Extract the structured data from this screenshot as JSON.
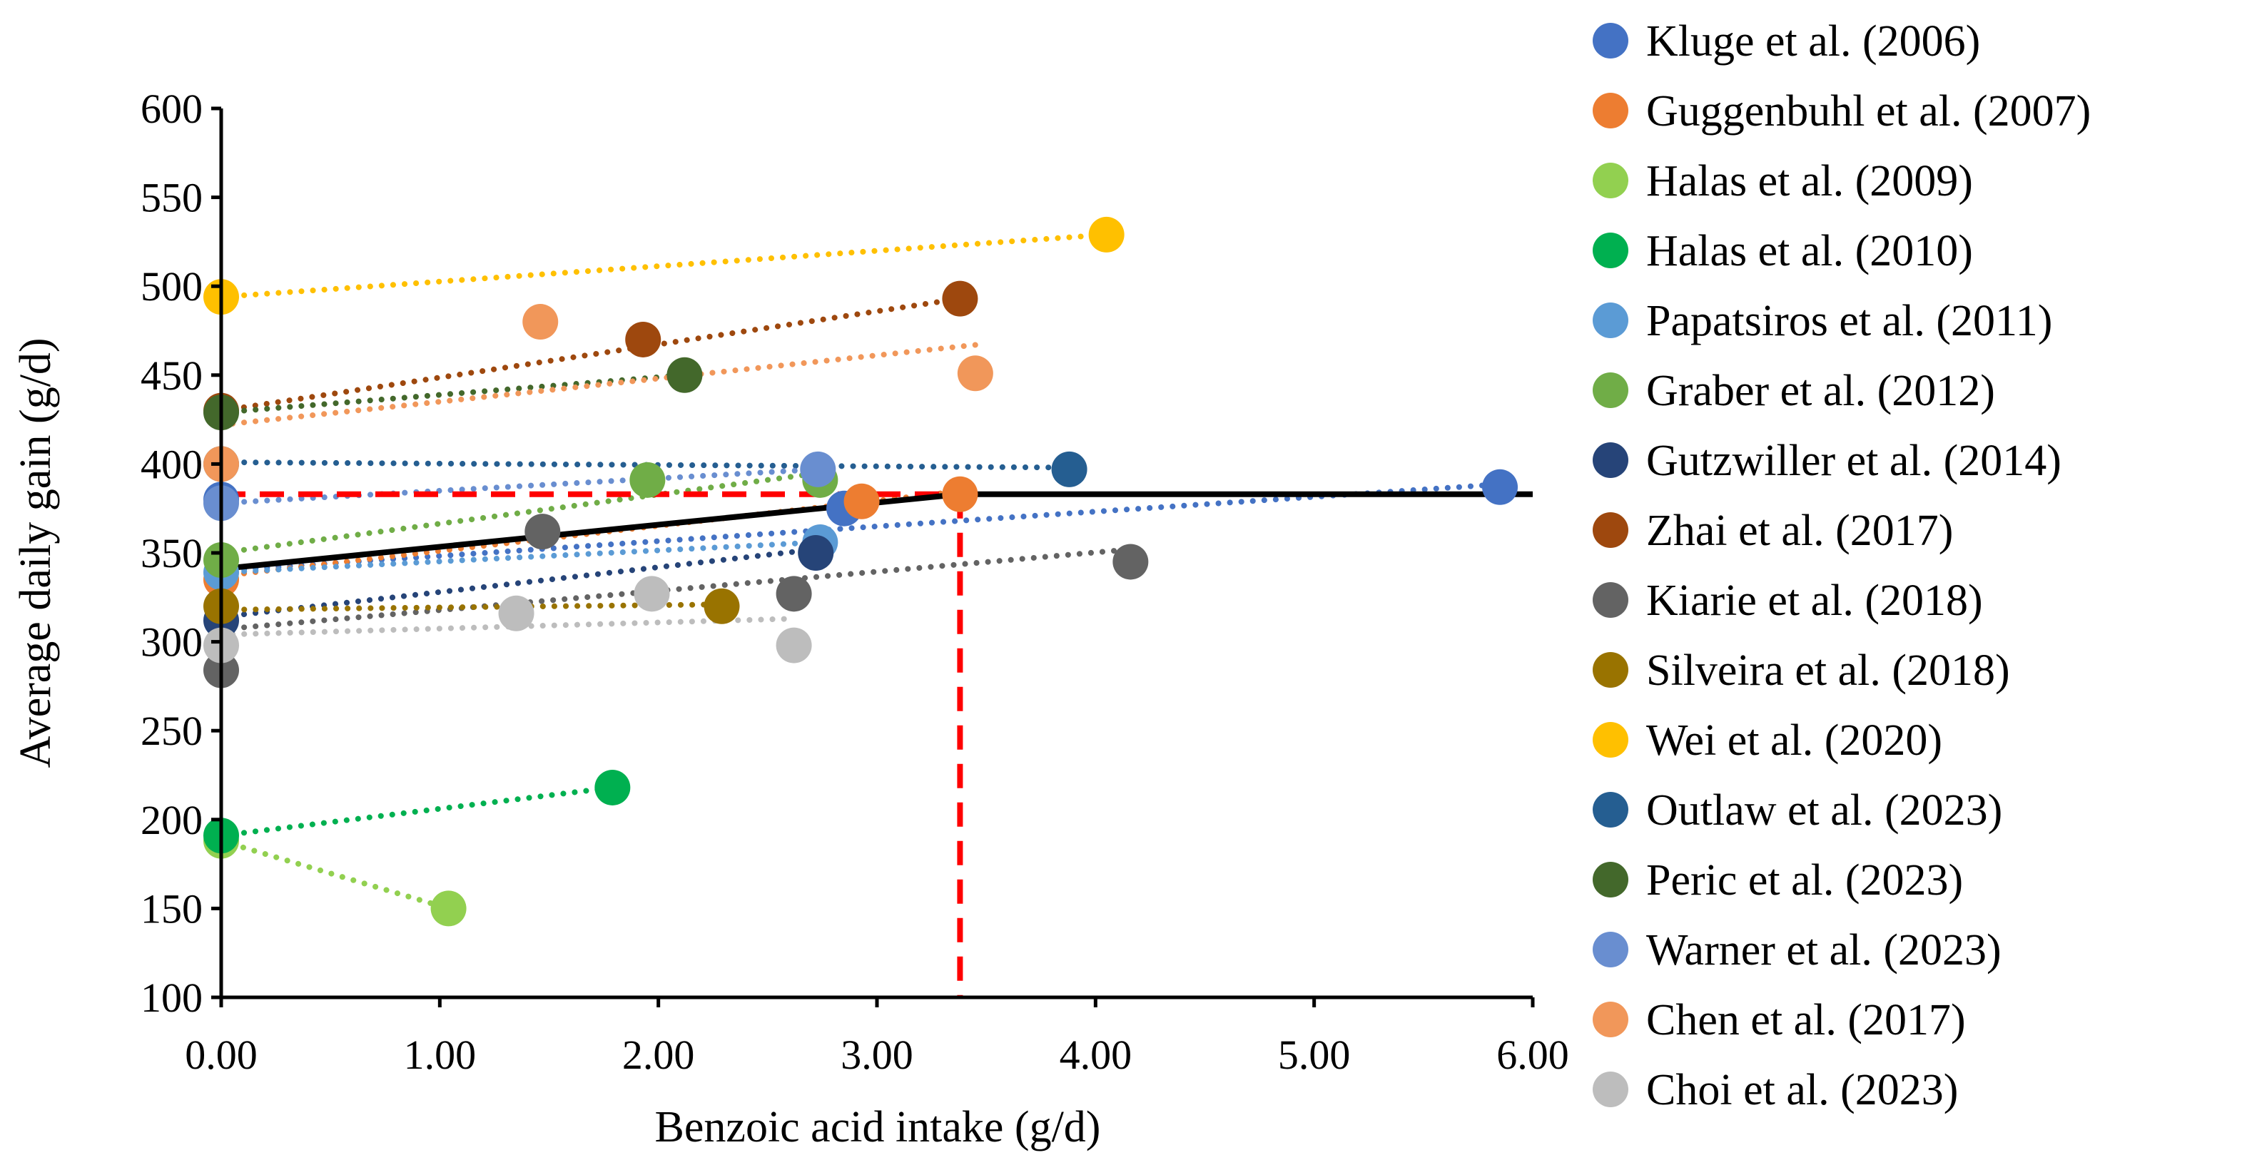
{
  "chart_data": {
    "type": "scatter",
    "title": "",
    "xlabel": "Benzoic acid intake (g/d)",
    "ylabel": "Average daily gain (g/d)",
    "xlim": [
      0,
      6
    ],
    "ylim": [
      100,
      600
    ],
    "x_ticks": [
      "0.00",
      "1.00",
      "2.00",
      "3.00",
      "4.00",
      "5.00",
      "6.00"
    ],
    "y_ticks": [
      "100",
      "150",
      "200",
      "250",
      "300",
      "350",
      "400",
      "450",
      "500",
      "550",
      "600"
    ],
    "x_tick_values": [
      0,
      1,
      2,
      3,
      4,
      5,
      6
    ],
    "y_tick_values": [
      100,
      150,
      200,
      250,
      300,
      350,
      400,
      450,
      500,
      550,
      600
    ],
    "grid": false,
    "legend_position": "right",
    "series": [
      {
        "name": "Kluge et al. (2006)",
        "color": "#4472C4",
        "points": [
          [
            0,
            380
          ],
          [
            2.85,
            375
          ],
          [
            5.85,
            387
          ]
        ],
        "trend": [
          [
            0,
            340
          ],
          [
            5.9,
            389
          ]
        ]
      },
      {
        "name": "Guggenbuhl et al. (2007)",
        "color": "#ED7D31",
        "points": [
          [
            0,
            335
          ],
          [
            2.93,
            379
          ],
          [
            3.38,
            383
          ]
        ],
        "trend": [
          [
            0,
            337
          ],
          [
            3.4,
            385
          ]
        ]
      },
      {
        "name": "Halas et al. (2009)",
        "color": "#92D050",
        "points": [
          [
            0,
            188
          ],
          [
            1.04,
            150
          ]
        ],
        "trend": [
          [
            0,
            188
          ],
          [
            1.04,
            150
          ]
        ]
      },
      {
        "name": "Halas et al. (2010)",
        "color": "#00B050",
        "points": [
          [
            0,
            191
          ],
          [
            1.79,
            218
          ]
        ],
        "trend": [
          [
            0,
            191
          ],
          [
            1.79,
            218
          ]
        ]
      },
      {
        "name": "Papatsiros et al. (2011)",
        "color": "#5B9BD5",
        "points": [
          [
            0,
            339
          ],
          [
            2.74,
            356
          ]
        ],
        "trend": [
          [
            0,
            339
          ],
          [
            2.74,
            356
          ]
        ]
      },
      {
        "name": "Graber et al. (2012)",
        "color": "#70AD47",
        "points": [
          [
            0,
            346
          ],
          [
            1.95,
            391
          ],
          [
            2.74,
            391
          ]
        ],
        "trend": [
          [
            0,
            350
          ],
          [
            2.74,
            395
          ]
        ]
      },
      {
        "name": "Gutzwiller et al. (2014)",
        "color": "#264478",
        "points": [
          [
            0,
            312
          ],
          [
            2.72,
            350
          ]
        ],
        "trend": [
          [
            0,
            314
          ],
          [
            2.72,
            352
          ]
        ]
      },
      {
        "name": "Zhai et al. (2017)",
        "color": "#9E480E",
        "points": [
          [
            0,
            430
          ],
          [
            1.93,
            470
          ],
          [
            3.38,
            493
          ]
        ],
        "trend": [
          [
            0,
            430
          ],
          [
            3.38,
            493
          ]
        ]
      },
      {
        "name": "Kiarie et al. (2018)",
        "color": "#636363",
        "points": [
          [
            0,
            284
          ],
          [
            1.47,
            362
          ],
          [
            2.62,
            327
          ],
          [
            4.16,
            345
          ]
        ],
        "trend": [
          [
            0,
            307
          ],
          [
            4.16,
            352
          ]
        ]
      },
      {
        "name": "Silveira et al. (2018)",
        "color": "#997300",
        "points": [
          [
            0,
            320
          ],
          [
            2.29,
            320
          ]
        ],
        "trend": [
          [
            0,
            318
          ],
          [
            2.29,
            321
          ]
        ]
      },
      {
        "name": "Wei et al. (2020)",
        "color": "#FFC000",
        "points": [
          [
            0,
            494
          ],
          [
            4.05,
            529
          ]
        ],
        "trend": [
          [
            0,
            494
          ],
          [
            4.05,
            529
          ]
        ]
      },
      {
        "name": "Outlaw et al. (2023)",
        "color": "#255E91",
        "points": [
          [
            0,
            400
          ],
          [
            3.88,
            397
          ]
        ],
        "trend": [
          [
            0,
            401
          ],
          [
            3.88,
            398
          ]
        ]
      },
      {
        "name": "Peric et al. (2023)",
        "color": "#43682B",
        "points": [
          [
            0,
            429
          ],
          [
            2.12,
            450
          ]
        ],
        "trend": [
          [
            0,
            429
          ],
          [
            2.12,
            450
          ]
        ]
      },
      {
        "name": "Warner et al. (2023)",
        "color": "#698ED0",
        "points": [
          [
            0,
            378
          ],
          [
            2.73,
            397
          ]
        ],
        "trend": [
          [
            0,
            378
          ],
          [
            2.73,
            397
          ]
        ]
      },
      {
        "name": "Chen et al. (2017)",
        "color": "#F1975A",
        "points": [
          [
            0,
            400
          ],
          [
            1.46,
            480
          ],
          [
            3.45,
            451
          ]
        ],
        "trend": [
          [
            0,
            422
          ],
          [
            3.45,
            467
          ]
        ]
      },
      {
        "name": "Choi et al. (2023)",
        "color": "#BDBDBD",
        "points": [
          [
            0,
            298
          ],
          [
            1.35,
            316
          ],
          [
            1.97,
            327
          ],
          [
            2.62,
            298
          ]
        ],
        "trend": [
          [
            0,
            304
          ],
          [
            2.62,
            313
          ]
        ]
      }
    ],
    "broken_line": {
      "color": "#000000",
      "points": [
        [
          0,
          341
        ],
        [
          3.38,
          383
        ],
        [
          6,
          383
        ]
      ]
    },
    "breakpoint_guides": {
      "color": "#FF0000",
      "breakpoint_x": 3.38,
      "plateau_y": 383
    }
  }
}
